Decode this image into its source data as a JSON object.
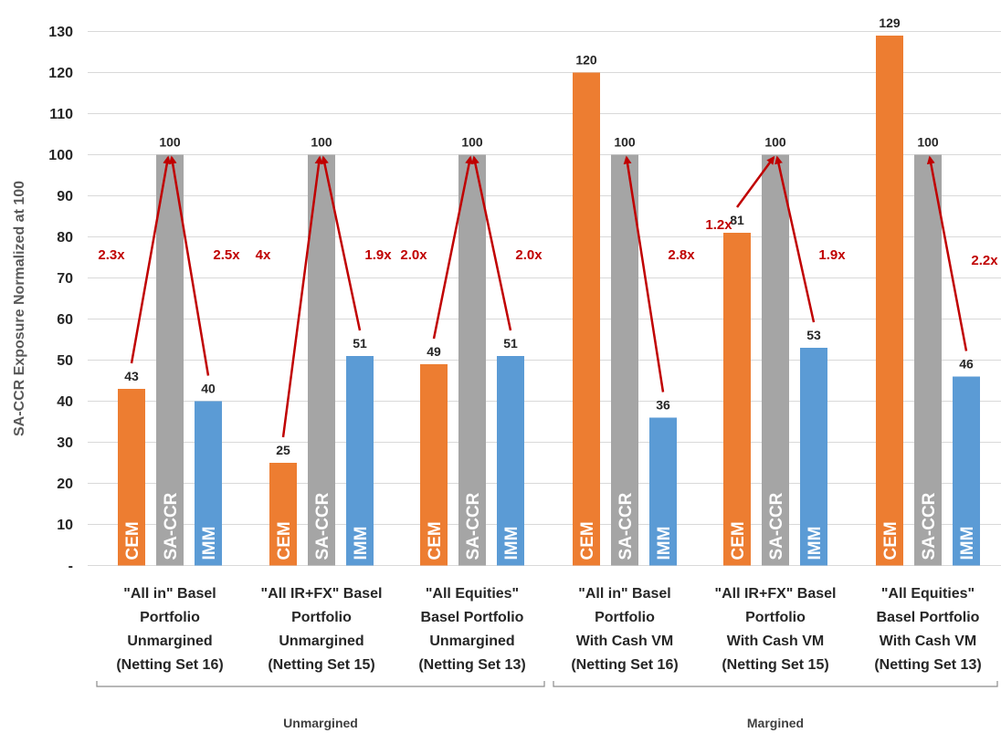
{
  "chart_data": {
    "type": "bar",
    "ylabel": "SA-CCR Exposure Normalized at 100",
    "ylim": [
      0,
      130
    ],
    "y_ticks": [
      "-",
      "10",
      "20",
      "30",
      "40",
      "50",
      "60",
      "70",
      "80",
      "90",
      "100",
      "110",
      "120",
      "130"
    ],
    "grid": true,
    "categories": [
      [
        "\"All in\" Basel",
        "Portfolio",
        "Unmargined",
        "(Netting Set 16)"
      ],
      [
        "\"All IR+FX\" Basel",
        "Portfolio",
        "Unmargined",
        "(Netting Set 15)"
      ],
      [
        "\"All Equities\"",
        "Basel Portfolio",
        "Unmargined",
        "(Netting Set 13)"
      ],
      [
        "\"All in\" Basel",
        "Portfolio",
        "With Cash VM",
        "(Netting Set 16)"
      ],
      [
        "\"All IR+FX\" Basel",
        "Portfolio",
        "With Cash VM",
        "(Netting Set 15)"
      ],
      [
        "\"All Equities\"",
        "Basel Portfolio",
        "With Cash VM",
        "(Netting Set 13)"
      ]
    ],
    "series": [
      {
        "name": "CEM",
        "color": "#ED7D31",
        "values": [
          43,
          25,
          49,
          120,
          81,
          129
        ],
        "labels": [
          "43",
          "25",
          "49",
          "120",
          "81",
          "129"
        ]
      },
      {
        "name": "SA-CCR",
        "color": "#A5A5A5",
        "values": [
          100,
          100,
          100,
          100,
          100,
          100
        ],
        "labels": [
          "100",
          "100",
          "100",
          "100",
          "100",
          "100"
        ]
      },
      {
        "name": "IMM",
        "color": "#5B9BD5",
        "values": [
          40,
          51,
          51,
          36,
          53,
          46
        ],
        "labels": [
          "40",
          "51",
          "51",
          "36",
          "53",
          "46"
        ]
      }
    ],
    "ratios": {
      "cem": [
        "2.3x",
        "4x",
        "2.0x",
        null,
        "1.2x",
        null
      ],
      "imm": [
        "2.5x",
        "1.9x",
        "2.0x",
        "2.8x",
        "1.9x",
        "2.2x"
      ]
    },
    "groups": [
      {
        "label": "Unmargined",
        "categories": [
          0,
          1,
          2
        ]
      },
      {
        "label": "Margined",
        "categories": [
          3,
          4,
          5
        ]
      }
    ],
    "arrow_color": "#C00000"
  }
}
